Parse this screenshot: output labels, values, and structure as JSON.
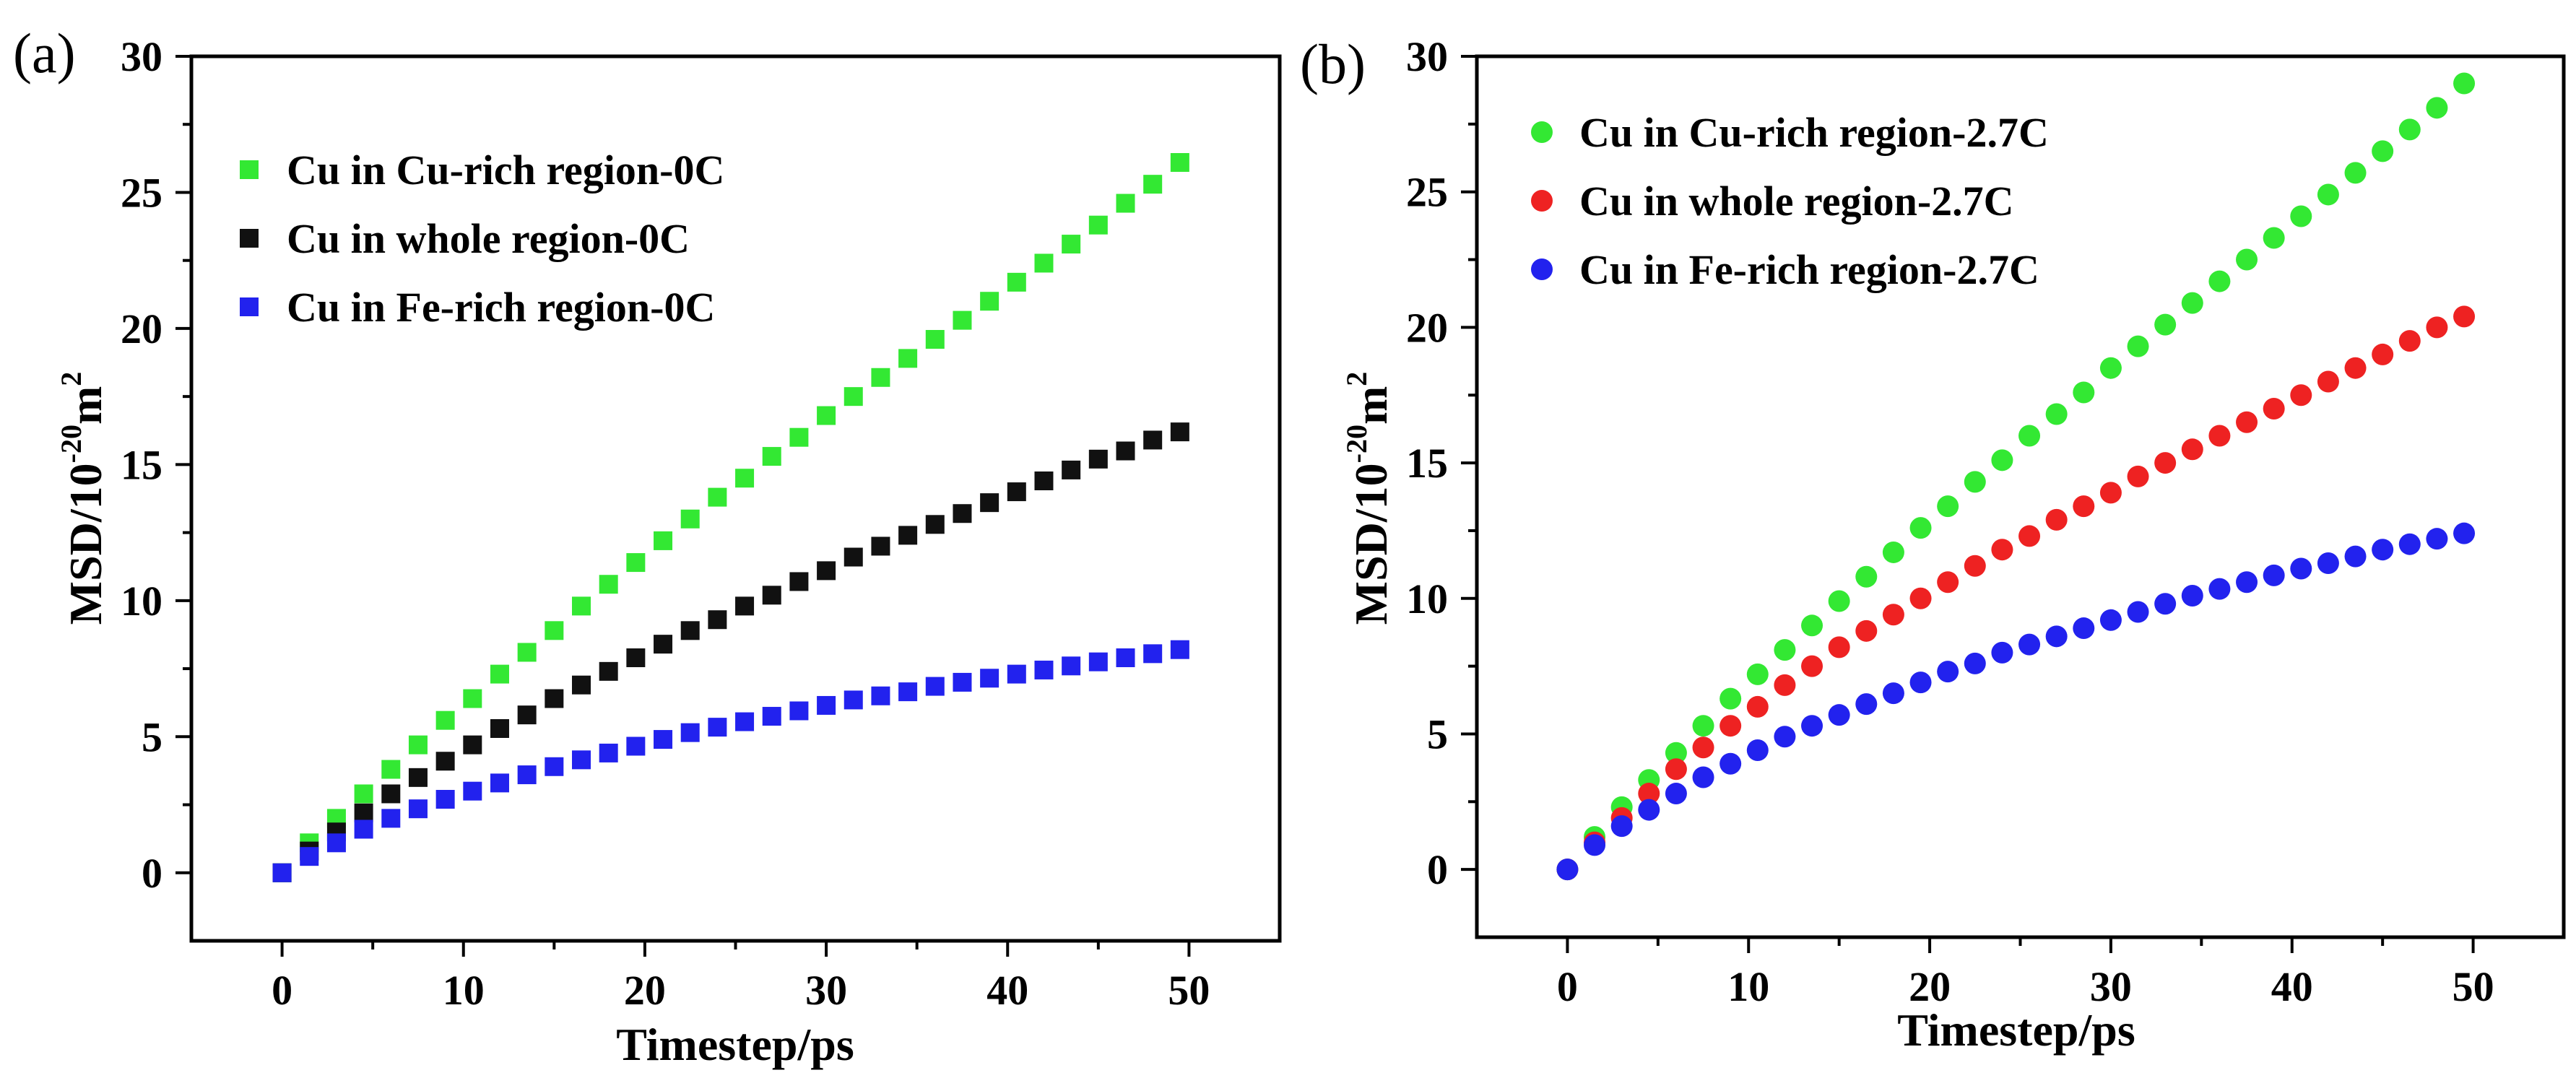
{
  "chart_data": [
    {
      "panel": "(a)",
      "type": "scatter",
      "marker": "square",
      "xlabel": "Timestep/ps",
      "ylabel": "MSD/10",
      "ylabel_exp": "-20",
      "ylabel_unit": "m",
      "ylabel_unit_exp": "2",
      "xlim": [
        -5,
        55
      ],
      "ylim": [
        -2.5,
        30
      ],
      "xticks": [
        0,
        10,
        20,
        30,
        40,
        50
      ],
      "yticks": [
        0,
        5,
        10,
        15,
        20,
        25,
        30
      ],
      "legend_position": "top-left",
      "series": [
        {
          "name": "Cu in Cu-rich region-0C",
          "color": "#33e833",
          "x": [
            0,
            1.5,
            3,
            4.5,
            6,
            7.5,
            9,
            10.5,
            12,
            13.5,
            15,
            16.5,
            18,
            19.5,
            21,
            22.5,
            24,
            25.5,
            27,
            28.5,
            30,
            31.5,
            33,
            34.5,
            36,
            37.5,
            39,
            40.5,
            42,
            43.5,
            45,
            46.5,
            48,
            49.5
          ],
          "y": [
            0,
            1.1,
            2.0,
            2.9,
            3.8,
            4.7,
            5.6,
            6.4,
            7.3,
            8.1,
            8.9,
            9.8,
            10.6,
            11.4,
            12.2,
            13.0,
            13.8,
            14.5,
            15.3,
            16.0,
            16.8,
            17.5,
            18.2,
            18.9,
            19.6,
            20.3,
            21.0,
            21.7,
            22.4,
            23.1,
            23.8,
            24.6,
            25.3,
            26.1
          ]
        },
        {
          "name": "Cu in whole region-0C",
          "color": "#111111",
          "x": [
            0,
            1.5,
            3,
            4.5,
            6,
            7.5,
            9,
            10.5,
            12,
            13.5,
            15,
            16.5,
            18,
            19.5,
            21,
            22.5,
            24,
            25.5,
            27,
            28.5,
            30,
            31.5,
            33,
            34.5,
            36,
            37.5,
            39,
            40.5,
            42,
            43.5,
            45,
            46.5,
            48,
            49.5
          ],
          "y": [
            0,
            0.8,
            1.5,
            2.2,
            2.9,
            3.5,
            4.1,
            4.7,
            5.3,
            5.8,
            6.4,
            6.9,
            7.4,
            7.9,
            8.4,
            8.9,
            9.3,
            9.8,
            10.2,
            10.7,
            11.1,
            11.6,
            12.0,
            12.4,
            12.8,
            13.2,
            13.6,
            14.0,
            14.4,
            14.8,
            15.2,
            15.5,
            15.9,
            16.2
          ]
        },
        {
          "name": "Cu in Fe-rich region-0C",
          "color": "#2222ee",
          "x": [
            0,
            1.5,
            3,
            4.5,
            6,
            7.5,
            9,
            10.5,
            12,
            13.5,
            15,
            16.5,
            18,
            19.5,
            21,
            22.5,
            24,
            25.5,
            27,
            28.5,
            30,
            31.5,
            33,
            34.5,
            36,
            37.5,
            39,
            40.5,
            42,
            43.5,
            45,
            46.5,
            48,
            49.5
          ],
          "y": [
            0,
            0.6,
            1.1,
            1.6,
            2.0,
            2.35,
            2.7,
            3.0,
            3.3,
            3.6,
            3.9,
            4.15,
            4.4,
            4.65,
            4.9,
            5.15,
            5.35,
            5.55,
            5.75,
            5.95,
            6.15,
            6.35,
            6.5,
            6.65,
            6.85,
            7.0,
            7.15,
            7.3,
            7.45,
            7.6,
            7.75,
            7.9,
            8.05,
            8.2
          ]
        }
      ]
    },
    {
      "panel": "(b)",
      "type": "scatter",
      "marker": "circle",
      "xlabel": "Timestep/ps",
      "ylabel": "MSD/10",
      "ylabel_exp": "-20",
      "ylabel_unit": "m",
      "ylabel_unit_exp": "2",
      "xlim": [
        -5,
        55
      ],
      "ylim": [
        -2.5,
        30
      ],
      "xticks": [
        0,
        10,
        20,
        30,
        40,
        50
      ],
      "yticks": [
        0,
        5,
        10,
        15,
        20,
        25,
        30
      ],
      "legend_position": "top-left",
      "series": [
        {
          "name": "Cu in Cu-rich region-2.7C",
          "color": "#33e833",
          "x": [
            0,
            1.5,
            3,
            4.5,
            6,
            7.5,
            9,
            10.5,
            12,
            13.5,
            15,
            16.5,
            18,
            19.5,
            21,
            22.5,
            24,
            25.5,
            27,
            28.5,
            30,
            31.5,
            33,
            34.5,
            36,
            37.5,
            39,
            40.5,
            42,
            43.5,
            45,
            46.5,
            48,
            49.5
          ],
          "y": [
            0,
            1.2,
            2.3,
            3.3,
            4.3,
            5.3,
            6.3,
            7.2,
            8.1,
            9.0,
            9.9,
            10.8,
            11.7,
            12.6,
            13.4,
            14.3,
            15.1,
            16.0,
            16.8,
            17.6,
            18.5,
            19.3,
            20.1,
            20.9,
            21.7,
            22.5,
            23.3,
            24.1,
            24.9,
            25.7,
            26.5,
            27.3,
            28.1,
            29.0
          ]
        },
        {
          "name": "Cu in whole region-2.7C",
          "color": "#ee2222",
          "x": [
            0,
            1.5,
            3,
            4.5,
            6,
            7.5,
            9,
            10.5,
            12,
            13.5,
            15,
            16.5,
            18,
            19.5,
            21,
            22.5,
            24,
            25.5,
            27,
            28.5,
            30,
            31.5,
            33,
            34.5,
            36,
            37.5,
            39,
            40.5,
            42,
            43.5,
            45,
            46.5,
            48,
            49.5
          ],
          "y": [
            0,
            1.0,
            1.9,
            2.8,
            3.7,
            4.5,
            5.3,
            6.0,
            6.8,
            7.5,
            8.2,
            8.8,
            9.4,
            10.0,
            10.6,
            11.2,
            11.8,
            12.3,
            12.9,
            13.4,
            13.9,
            14.5,
            15.0,
            15.5,
            16.0,
            16.5,
            17.0,
            17.5,
            18.0,
            18.5,
            19.0,
            19.5,
            20.0,
            20.4
          ]
        },
        {
          "name": "Cu in Fe-rich region-2.7C",
          "color": "#2222ee",
          "x": [
            0,
            1.5,
            3,
            4.5,
            6,
            7.5,
            9,
            10.5,
            12,
            13.5,
            15,
            16.5,
            18,
            19.5,
            21,
            22.5,
            24,
            25.5,
            27,
            28.5,
            30,
            31.5,
            33,
            34.5,
            36,
            37.5,
            39,
            40.5,
            42,
            43.5,
            45,
            46.5,
            48,
            49.5
          ],
          "y": [
            0,
            0.9,
            1.6,
            2.2,
            2.8,
            3.4,
            3.9,
            4.4,
            4.9,
            5.3,
            5.7,
            6.1,
            6.5,
            6.9,
            7.3,
            7.6,
            8.0,
            8.3,
            8.6,
            8.9,
            9.2,
            9.5,
            9.8,
            10.1,
            10.35,
            10.6,
            10.85,
            11.1,
            11.3,
            11.55,
            11.8,
            12.0,
            12.2,
            12.4
          ]
        }
      ]
    }
  ]
}
